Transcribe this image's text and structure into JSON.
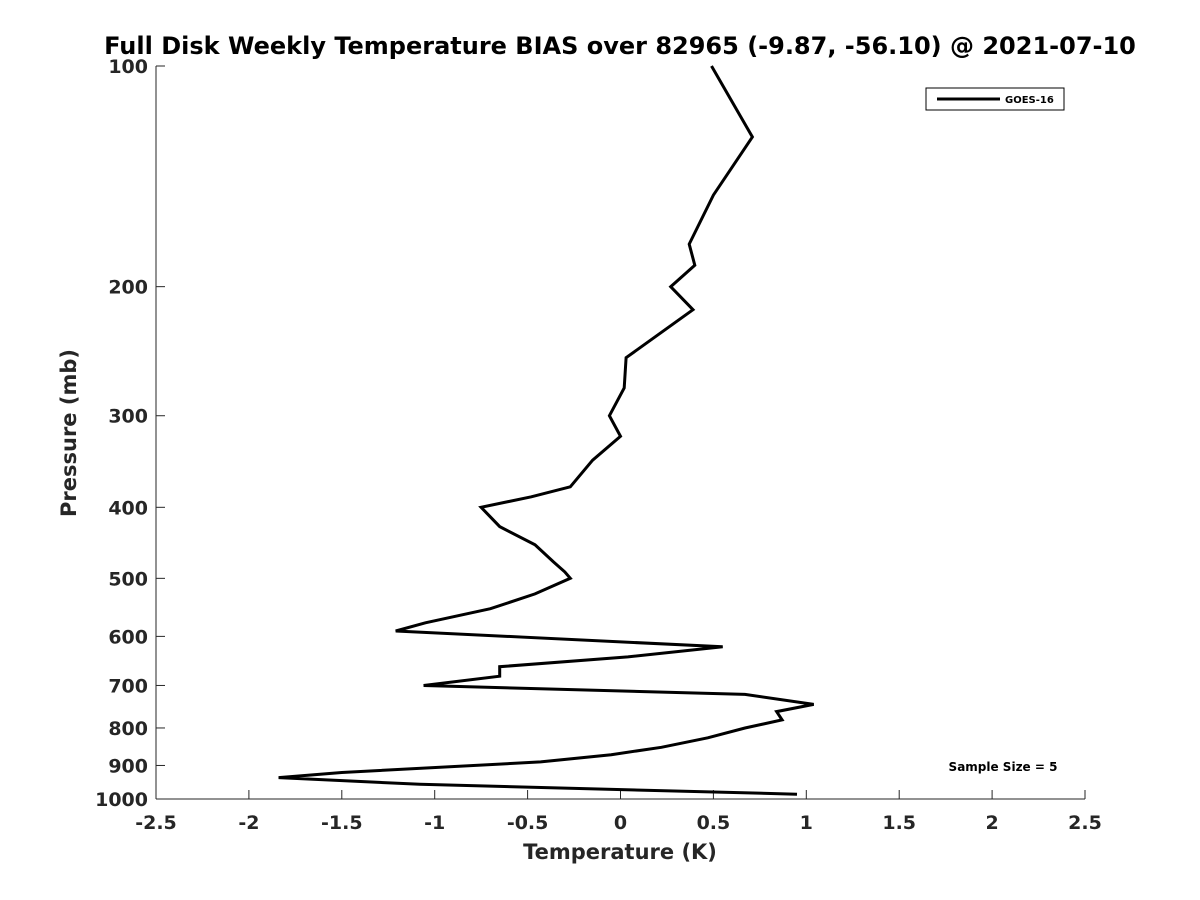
{
  "chart_data": {
    "type": "line",
    "title": "Full Disk Weekly Temperature BIAS over 82965 (-9.87, -56.10) @ 2021-07-10",
    "xlabel": "Temperature (K)",
    "ylabel": "Pressure (mb)",
    "xlim": [
      -2.5,
      2.5
    ],
    "ylim": [
      100,
      1000
    ],
    "y_scale": "log",
    "y_reversed": true,
    "xticks": [
      "-2.5",
      "-2",
      "-1.5",
      "-1",
      "-0.5",
      "0",
      "0.5",
      "1",
      "1.5",
      "2",
      "2.5"
    ],
    "xtick_values": [
      -2.5,
      -2,
      -1.5,
      -1,
      -0.5,
      0,
      0.5,
      1,
      1.5,
      2,
      2.5
    ],
    "yticks": [
      "100",
      "200",
      "300",
      "400",
      "500",
      "600",
      "700",
      "800",
      "900",
      "1000"
    ],
    "ytick_values": [
      100,
      200,
      300,
      400,
      500,
      600,
      700,
      800,
      900,
      1000
    ],
    "grid": false,
    "legend_position": "top-right",
    "annotation": "Sample Size = 5",
    "series": [
      {
        "name": "GOES-16",
        "color": "#000000",
        "points": [
          {
            "x": 0.49,
            "p": 100
          },
          {
            "x": 0.71,
            "p": 125
          },
          {
            "x": 0.5,
            "p": 150
          },
          {
            "x": 0.37,
            "p": 175
          },
          {
            "x": 0.4,
            "p": 187
          },
          {
            "x": 0.27,
            "p": 200
          },
          {
            "x": 0.39,
            "p": 215
          },
          {
            "x": 0.03,
            "p": 250
          },
          {
            "x": 0.02,
            "p": 275
          },
          {
            "x": -0.06,
            "p": 300
          },
          {
            "x": 0.0,
            "p": 320
          },
          {
            "x": -0.15,
            "p": 345
          },
          {
            "x": -0.27,
            "p": 375
          },
          {
            "x": -0.48,
            "p": 387
          },
          {
            "x": -0.75,
            "p": 400
          },
          {
            "x": -0.65,
            "p": 425
          },
          {
            "x": -0.46,
            "p": 450
          },
          {
            "x": -0.36,
            "p": 475
          },
          {
            "x": -0.3,
            "p": 490
          },
          {
            "x": -0.27,
            "p": 500
          },
          {
            "x": -0.46,
            "p": 525
          },
          {
            "x": -0.7,
            "p": 550
          },
          {
            "x": -1.05,
            "p": 575
          },
          {
            "x": -1.21,
            "p": 590
          },
          {
            "x": 0.55,
            "p": 620
          },
          {
            "x": 0.04,
            "p": 640
          },
          {
            "x": -0.65,
            "p": 660
          },
          {
            "x": -0.65,
            "p": 680
          },
          {
            "x": -1.06,
            "p": 700
          },
          {
            "x": 0.67,
            "p": 720
          },
          {
            "x": 1.04,
            "p": 743
          },
          {
            "x": 0.84,
            "p": 760
          },
          {
            "x": 0.87,
            "p": 780
          },
          {
            "x": 0.67,
            "p": 800
          },
          {
            "x": 0.47,
            "p": 825
          },
          {
            "x": 0.22,
            "p": 850
          },
          {
            "x": -0.05,
            "p": 870
          },
          {
            "x": -0.43,
            "p": 890
          },
          {
            "x": -1.5,
            "p": 920
          },
          {
            "x": -1.84,
            "p": 935
          },
          {
            "x": -1.08,
            "p": 955
          },
          {
            "x": 0.95,
            "p": 985
          }
        ]
      }
    ]
  }
}
